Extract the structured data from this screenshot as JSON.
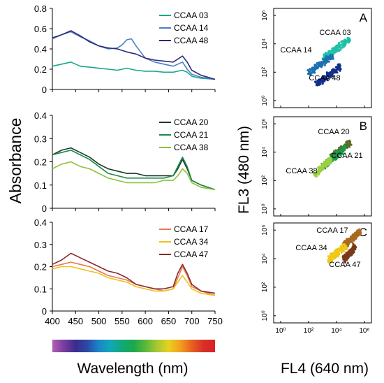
{
  "figure": {
    "y_label": "Absorbance",
    "x_label": "Wavelength (nm)",
    "cyto_y_label": "FL3 (480 nm)",
    "cyto_x_label": "FL4 (640 nm)",
    "spectrum_bar_colors": [
      "#b060b0",
      "#7a3ca0",
      "#3a2c8c",
      "#2a4aa8",
      "#1a86c8",
      "#12a6b8",
      "#10a878",
      "#1ca84a",
      "#58b83a",
      "#a6c832",
      "#e8d020",
      "#f0a020",
      "#e86020",
      "#d83028",
      "#d82028"
    ]
  },
  "chart_data": [
    {
      "type": "line",
      "xlim": [
        400,
        750
      ],
      "ylim": [
        0,
        0.8
      ],
      "x_ticks": [
        "400",
        "450",
        "500",
        "550",
        "600",
        "650",
        "700",
        "750"
      ],
      "y_ticks": [
        "0",
        "0.2",
        "0.4",
        "0.6",
        "0.8"
      ],
      "legend_position": "top-right",
      "series": [
        {
          "name": "CCAA 03",
          "color": "#1aa88a",
          "x": [
            400,
            420,
            440,
            460,
            480,
            500,
            520,
            540,
            560,
            580,
            600,
            620,
            640,
            660,
            670,
            680,
            690,
            700,
            720,
            750
          ],
          "values": [
            0.23,
            0.25,
            0.27,
            0.23,
            0.22,
            0.21,
            0.2,
            0.19,
            0.21,
            0.19,
            0.18,
            0.18,
            0.17,
            0.17,
            0.18,
            0.19,
            0.17,
            0.13,
            0.11,
            0.1
          ]
        },
        {
          "name": "CCAA 14",
          "color": "#4a80c4",
          "x": [
            400,
            420,
            440,
            460,
            480,
            500,
            520,
            540,
            550,
            560,
            570,
            580,
            600,
            620,
            640,
            660,
            670,
            680,
            690,
            700,
            720,
            750
          ],
          "values": [
            0.5,
            0.54,
            0.57,
            0.52,
            0.48,
            0.43,
            0.4,
            0.41,
            0.44,
            0.49,
            0.5,
            0.43,
            0.31,
            0.27,
            0.25,
            0.23,
            0.25,
            0.27,
            0.2,
            0.15,
            0.12,
            0.1
          ]
        },
        {
          "name": "CCAA 48",
          "color": "#2c2a7c",
          "x": [
            400,
            420,
            440,
            460,
            480,
            500,
            520,
            540,
            560,
            580,
            600,
            620,
            640,
            660,
            670,
            680,
            690,
            700,
            720,
            750
          ],
          "values": [
            0.51,
            0.54,
            0.58,
            0.53,
            0.47,
            0.43,
            0.41,
            0.4,
            0.37,
            0.35,
            0.31,
            0.29,
            0.28,
            0.27,
            0.3,
            0.33,
            0.27,
            0.19,
            0.14,
            0.1
          ]
        }
      ]
    },
    {
      "type": "line",
      "xlim": [
        400,
        750
      ],
      "ylim": [
        0,
        0.4
      ],
      "x_ticks": [
        "400",
        "450",
        "500",
        "550",
        "600",
        "650",
        "700",
        "750"
      ],
      "y_ticks": [
        "0",
        "0.1",
        "0.2",
        "0.3",
        "0.4"
      ],
      "legend_position": "top-right",
      "series": [
        {
          "name": "CCAA 20",
          "color": "#1a3a2a",
          "x": [
            400,
            420,
            440,
            460,
            480,
            500,
            520,
            540,
            560,
            580,
            600,
            620,
            640,
            660,
            670,
            680,
            690,
            700,
            720,
            750
          ],
          "values": [
            0.23,
            0.25,
            0.26,
            0.24,
            0.22,
            0.19,
            0.17,
            0.16,
            0.15,
            0.15,
            0.14,
            0.14,
            0.14,
            0.14,
            0.17,
            0.21,
            0.17,
            0.12,
            0.1,
            0.08
          ]
        },
        {
          "name": "CCAA 21",
          "color": "#1a8a4a",
          "x": [
            400,
            420,
            440,
            460,
            480,
            500,
            520,
            540,
            560,
            580,
            600,
            620,
            640,
            660,
            670,
            680,
            690,
            700,
            720,
            750
          ],
          "values": [
            0.23,
            0.24,
            0.25,
            0.23,
            0.21,
            0.18,
            0.15,
            0.14,
            0.13,
            0.13,
            0.13,
            0.13,
            0.13,
            0.14,
            0.18,
            0.22,
            0.18,
            0.12,
            0.1,
            0.08
          ]
        },
        {
          "name": "CCAA 38",
          "color": "#8ac43a",
          "x": [
            400,
            420,
            440,
            460,
            480,
            500,
            520,
            540,
            560,
            580,
            600,
            620,
            640,
            660,
            670,
            680,
            690,
            700,
            720,
            750
          ],
          "values": [
            0.17,
            0.19,
            0.2,
            0.18,
            0.17,
            0.15,
            0.13,
            0.12,
            0.11,
            0.11,
            0.11,
            0.11,
            0.12,
            0.12,
            0.14,
            0.17,
            0.15,
            0.11,
            0.09,
            0.08
          ]
        }
      ]
    },
    {
      "type": "line",
      "xlim": [
        400,
        750
      ],
      "ylim": [
        0,
        0.4
      ],
      "x_ticks": [
        "400",
        "450",
        "500",
        "550",
        "600",
        "650",
        "700",
        "750"
      ],
      "y_ticks": [
        "0",
        "0.1",
        "0.2",
        "0.3",
        "0.4"
      ],
      "legend_position": "top-right",
      "series": [
        {
          "name": "CCAA 17",
          "color": "#e87a50",
          "x": [
            400,
            420,
            440,
            460,
            480,
            500,
            520,
            540,
            560,
            580,
            600,
            620,
            640,
            660,
            670,
            680,
            690,
            700,
            720,
            750
          ],
          "values": [
            0.2,
            0.21,
            0.22,
            0.21,
            0.2,
            0.18,
            0.16,
            0.15,
            0.14,
            0.12,
            0.11,
            0.1,
            0.09,
            0.1,
            0.15,
            0.2,
            0.16,
            0.11,
            0.09,
            0.07
          ]
        },
        {
          "name": "CCAA 34",
          "color": "#f0c020",
          "x": [
            400,
            420,
            440,
            460,
            480,
            500,
            520,
            540,
            560,
            580,
            600,
            620,
            640,
            660,
            670,
            680,
            690,
            700,
            720,
            750
          ],
          "values": [
            0.19,
            0.2,
            0.2,
            0.19,
            0.18,
            0.17,
            0.15,
            0.14,
            0.13,
            0.11,
            0.1,
            0.09,
            0.09,
            0.1,
            0.13,
            0.16,
            0.13,
            0.1,
            0.08,
            0.07
          ]
        },
        {
          "name": "CCAA 47",
          "color": "#8a2a2a",
          "x": [
            400,
            420,
            440,
            460,
            480,
            500,
            520,
            540,
            560,
            580,
            600,
            620,
            640,
            660,
            670,
            680,
            690,
            700,
            720,
            750
          ],
          "values": [
            0.21,
            0.23,
            0.26,
            0.24,
            0.22,
            0.2,
            0.18,
            0.17,
            0.15,
            0.12,
            0.11,
            0.1,
            0.1,
            0.11,
            0.17,
            0.21,
            0.17,
            0.12,
            0.09,
            0.08
          ]
        }
      ]
    },
    {
      "type": "scatter",
      "panel_letter": "A",
      "x_ticks": [
        "10⁰",
        "10²",
        "10⁴",
        "10⁶"
      ],
      "y_ticks": [
        "10⁰",
        "10²",
        "10⁴",
        "10⁶"
      ],
      "series": [
        {
          "name": "CCAA 03",
          "color": "#20c0a8",
          "x_log_range": [
            3.1,
            4.9
          ],
          "y_log_range": [
            3.0,
            4.3
          ]
        },
        {
          "name": "CCAA 14",
          "color": "#1c70b0",
          "x_log_range": [
            2.0,
            3.7
          ],
          "y_log_range": [
            1.9,
            3.2
          ]
        },
        {
          "name": "CCAA 48",
          "color": "#12308a",
          "x_log_range": [
            2.5,
            4.3
          ],
          "y_log_range": [
            1.1,
            2.4
          ]
        }
      ]
    },
    {
      "type": "scatter",
      "panel_letter": "B",
      "x_ticks": [
        "10⁰",
        "10²",
        "10⁴",
        "10⁶"
      ],
      "y_ticks": [
        "10⁰",
        "10²",
        "10⁴",
        "10⁶"
      ],
      "series": [
        {
          "name": "CCAA 20",
          "color": "#5a6a2a",
          "x_log_range": [
            3.6,
            5.0
          ],
          "y_log_range": [
            3.6,
            4.7
          ]
        },
        {
          "name": "CCAA 21",
          "color": "#1a9a4a",
          "x_log_range": [
            3.0,
            4.6
          ],
          "y_log_range": [
            3.0,
            4.3
          ]
        },
        {
          "name": "CCAA 38",
          "color": "#9ad040",
          "x_log_range": [
            2.4,
            3.6
          ],
          "y_log_range": [
            2.4,
            3.5
          ]
        }
      ]
    },
    {
      "type": "scatter",
      "panel_letter": "C",
      "x_ticks": [
        "10⁰",
        "10²",
        "10⁴",
        "10⁶"
      ],
      "y_ticks": [
        "10⁰",
        "10²",
        "10⁴",
        "10⁶"
      ],
      "series": [
        {
          "name": "CCAA 17",
          "color": "#a86a20",
          "x_log_range": [
            4.5,
            5.7
          ],
          "y_log_range": [
            4.9,
            5.9
          ]
        },
        {
          "name": "CCAA 34",
          "color": "#f0c818",
          "x_log_range": [
            3.4,
            4.7
          ],
          "y_log_range": [
            3.9,
            4.9
          ]
        },
        {
          "name": "CCAA 47",
          "color": "#7a3a1a",
          "x_log_range": [
            4.5,
            5.3
          ],
          "y_log_range": [
            3.9,
            4.8
          ]
        }
      ]
    }
  ]
}
